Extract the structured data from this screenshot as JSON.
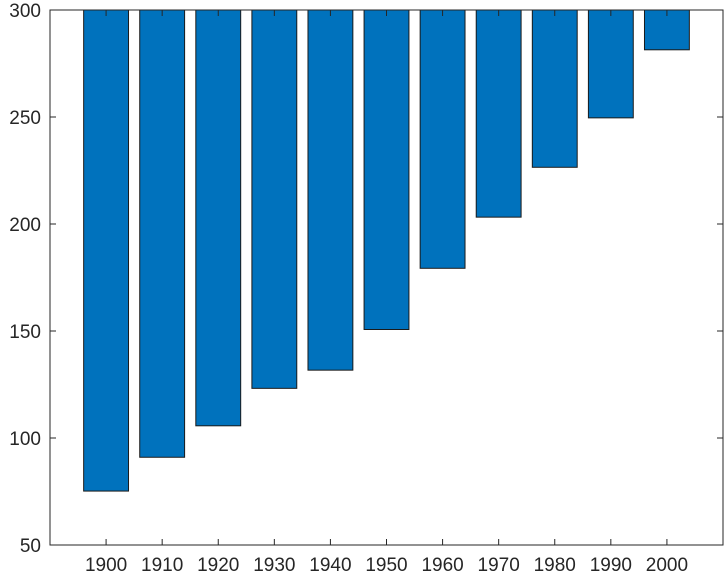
{
  "chart_data": {
    "type": "bar",
    "title": "",
    "xlabel": "",
    "ylabel": "",
    "categories": [
      "1900",
      "1910",
      "1920",
      "1930",
      "1940",
      "1950",
      "1960",
      "1970",
      "1980",
      "1990",
      "2000"
    ],
    "values": [
      75.2,
      91.0,
      105.7,
      123.2,
      131.7,
      150.7,
      179.3,
      203.2,
      226.5,
      249.6,
      281.4
    ],
    "bar_baseline": 300,
    "ylim": [
      50,
      300
    ],
    "yticks": [
      50,
      100,
      150,
      200,
      250,
      300
    ],
    "grid": false,
    "legend": "none",
    "bar_color": "#0072BD"
  }
}
